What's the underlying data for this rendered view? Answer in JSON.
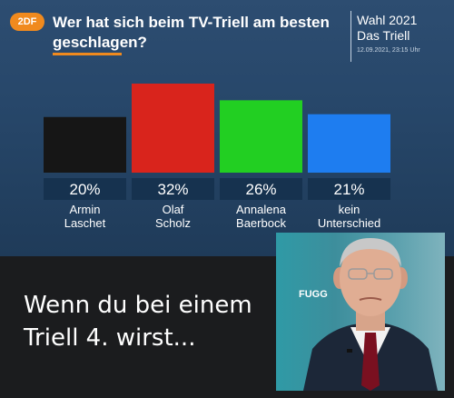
{
  "broadcast": {
    "logo": "2DF",
    "question": "Wer hat sich beim TV-Triell am besten geschlagen?",
    "side_title": "Wahl 2021",
    "side_subtitle": "Das Triell",
    "side_date": "12.09.2021, 23:15 Uhr"
  },
  "chart_data": {
    "type": "bar",
    "title": "Wer hat sich beim TV-Triell am besten geschlagen?",
    "categories": [
      "Armin Laschet",
      "Olaf Scholz",
      "Annalena Baerbock",
      "kein Unterschied"
    ],
    "category_lines": [
      [
        "Armin",
        "Laschet"
      ],
      [
        "Olaf",
        "Scholz"
      ],
      [
        "Annalena",
        "Baerbock"
      ],
      [
        "kein",
        "Unterschied"
      ]
    ],
    "values": [
      20,
      32,
      26,
      21
    ],
    "value_labels": [
      "20%",
      "32%",
      "26%",
      "21%"
    ],
    "colors": [
      "#161616",
      "#d9241c",
      "#22cf22",
      "#1e7df0"
    ],
    "ylim": [
      0,
      32
    ],
    "xlabel": "",
    "ylabel": "",
    "grid": false,
    "legend": "none"
  },
  "meme": {
    "caption": "Wenn du bei einem Triell 4. wirst...",
    "photo_label": "FUGG"
  }
}
